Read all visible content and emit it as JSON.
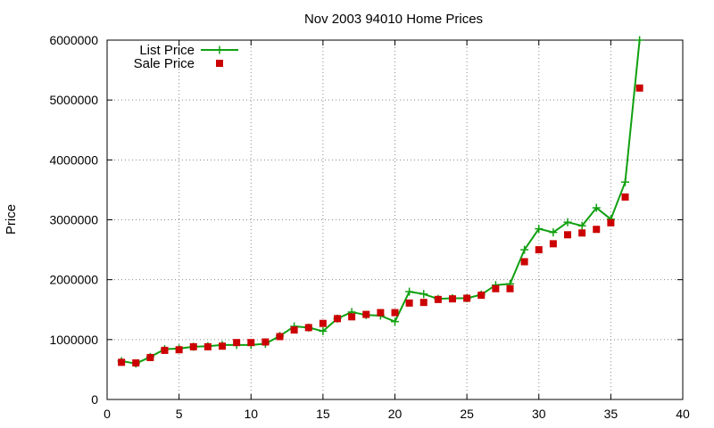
{
  "chart_data": {
    "type": "line",
    "title": "Nov 2003 94010 Home Prices",
    "xlabel": "",
    "ylabel": "Price",
    "xlim": [
      0,
      40
    ],
    "ylim": [
      0,
      6000000
    ],
    "x_ticks": [
      "0",
      "5",
      "10",
      "15",
      "20",
      "25",
      "30",
      "35",
      "40"
    ],
    "y_ticks": [
      "0",
      "1000000",
      "2000000",
      "3000000",
      "4000000",
      "5000000",
      "6000000"
    ],
    "grid": true,
    "legend_position": "top-left",
    "series": [
      {
        "name": "List Price",
        "style": "line+cross",
        "color": "#10a010",
        "x": [
          1,
          2,
          3,
          4,
          5,
          6,
          7,
          8,
          9,
          10,
          11,
          12,
          13,
          14,
          15,
          16,
          17,
          18,
          19,
          20,
          21,
          22,
          23,
          24,
          25,
          26,
          27,
          28,
          29,
          30,
          31,
          32,
          33,
          34,
          35,
          36,
          37
        ],
        "y": [
          640000,
          600000,
          710000,
          840000,
          850000,
          880000,
          890000,
          910000,
          910000,
          910000,
          930000,
          1060000,
          1220000,
          1200000,
          1140000,
          1350000,
          1460000,
          1410000,
          1400000,
          1300000,
          1800000,
          1760000,
          1680000,
          1690000,
          1690000,
          1750000,
          1910000,
          1930000,
          2500000,
          2850000,
          2790000,
          2960000,
          2900000,
          3200000,
          3010000,
          3630000,
          6000000
        ]
      },
      {
        "name": "Sale Price",
        "style": "square",
        "color": "#cc0000",
        "x": [
          1,
          2,
          3,
          4,
          5,
          6,
          7,
          8,
          9,
          10,
          11,
          12,
          13,
          14,
          15,
          16,
          17,
          18,
          19,
          20,
          21,
          22,
          23,
          24,
          25,
          26,
          27,
          28,
          29,
          30,
          31,
          32,
          33,
          34,
          35,
          36,
          37
        ],
        "y": [
          620000,
          610000,
          700000,
          820000,
          830000,
          880000,
          880000,
          890000,
          950000,
          950000,
          960000,
          1050000,
          1160000,
          1200000,
          1270000,
          1350000,
          1380000,
          1420000,
          1450000,
          1450000,
          1610000,
          1620000,
          1670000,
          1680000,
          1690000,
          1740000,
          1850000,
          1850000,
          2300000,
          2500000,
          2600000,
          2750000,
          2780000,
          2840000,
          2950000,
          3380000,
          5200000
        ]
      }
    ]
  }
}
